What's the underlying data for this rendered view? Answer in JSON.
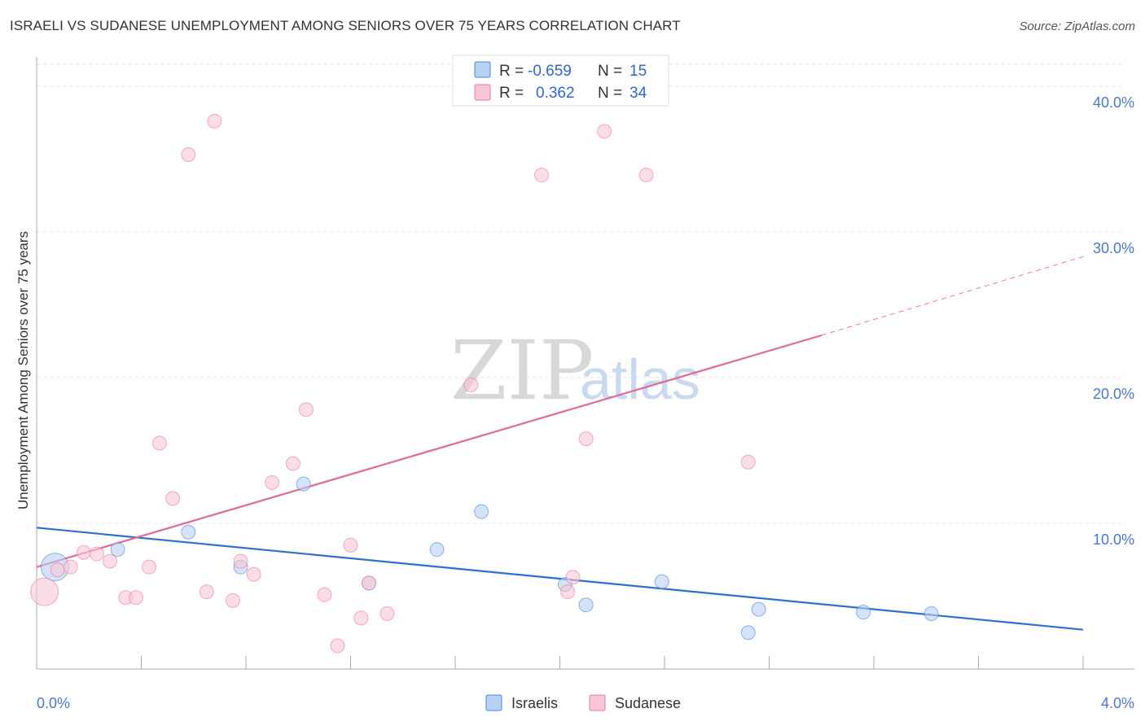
{
  "title": "ISRAELI VS SUDANESE UNEMPLOYMENT AMONG SENIORS OVER 75 YEARS CORRELATION CHART",
  "source": "Source: ZipAtlas.com",
  "watermark": {
    "zip": "ZIP",
    "atlas": "atlas"
  },
  "legend": {
    "r_label": "R =",
    "n_label": "N =",
    "rows": [
      {
        "series": "Israelis",
        "r": "-0.659",
        "n": "15"
      },
      {
        "series": "Sudanese",
        "r": "0.362",
        "n": "34"
      }
    ]
  },
  "chart_data": {
    "type": "scatter",
    "title": "ISRAELI VS SUDANESE UNEMPLOYMENT AMONG SENIORS OVER 75 YEARS CORRELATION CHART",
    "xlabel": "",
    "ylabel": "Unemployment Among Seniors over 75 years",
    "xlim": [
      0,
      4.0
    ],
    "ylim": [
      0,
      41.5
    ],
    "x_tick_labels": [
      "0.0%",
      "4.0%"
    ],
    "y_ticks": [
      10,
      20,
      30,
      40
    ],
    "y_tick_labels": [
      "10.0%",
      "20.0%",
      "30.0%",
      "40.0%"
    ],
    "colors": {
      "Israelis": "#4a86d8",
      "Sudanese": "#e8799e",
      "israelis_fill": "#b8d0f2",
      "sudanese_fill": "#f8c6d6"
    },
    "series": [
      {
        "name": "Israelis",
        "points": [
          {
            "x": 0.07,
            "y": 7.0,
            "big": true
          },
          {
            "x": 0.31,
            "y": 8.2
          },
          {
            "x": 0.58,
            "y": 9.4
          },
          {
            "x": 0.78,
            "y": 7.0
          },
          {
            "x": 1.02,
            "y": 12.7
          },
          {
            "x": 1.27,
            "y": 5.9
          },
          {
            "x": 1.53,
            "y": 8.2
          },
          {
            "x": 1.7,
            "y": 10.8
          },
          {
            "x": 2.02,
            "y": 5.8
          },
          {
            "x": 2.1,
            "y": 4.4
          },
          {
            "x": 2.39,
            "y": 6.0
          },
          {
            "x": 2.72,
            "y": 2.5
          },
          {
            "x": 2.76,
            "y": 4.1
          },
          {
            "x": 3.16,
            "y": 3.9
          },
          {
            "x": 3.42,
            "y": 3.8
          }
        ],
        "trend": {
          "x0": 0.0,
          "y0": 9.7,
          "x1": 4.0,
          "y1": 2.7
        }
      },
      {
        "name": "Sudanese",
        "points": [
          {
            "x": 0.03,
            "y": 5.3,
            "big": true
          },
          {
            "x": 0.08,
            "y": 6.8
          },
          {
            "x": 0.13,
            "y": 7.0
          },
          {
            "x": 0.18,
            "y": 8.0
          },
          {
            "x": 0.23,
            "y": 7.9
          },
          {
            "x": 0.28,
            "y": 7.4
          },
          {
            "x": 0.34,
            "y": 4.9
          },
          {
            "x": 0.38,
            "y": 4.9
          },
          {
            "x": 0.43,
            "y": 7.0
          },
          {
            "x": 0.47,
            "y": 15.5
          },
          {
            "x": 0.52,
            "y": 11.7
          },
          {
            "x": 0.58,
            "y": 35.3
          },
          {
            "x": 0.65,
            "y": 5.3
          },
          {
            "x": 0.68,
            "y": 37.6
          },
          {
            "x": 0.75,
            "y": 4.7
          },
          {
            "x": 0.78,
            "y": 7.4
          },
          {
            "x": 0.83,
            "y": 6.5
          },
          {
            "x": 0.9,
            "y": 12.8
          },
          {
            "x": 0.98,
            "y": 14.1
          },
          {
            "x": 1.03,
            "y": 17.8
          },
          {
            "x": 1.1,
            "y": 5.1
          },
          {
            "x": 1.15,
            "y": 1.6
          },
          {
            "x": 1.2,
            "y": 8.5
          },
          {
            "x": 1.24,
            "y": 3.5
          },
          {
            "x": 1.27,
            "y": 5.9
          },
          {
            "x": 1.34,
            "y": 3.8
          },
          {
            "x": 1.66,
            "y": 19.5
          },
          {
            "x": 1.93,
            "y": 33.9
          },
          {
            "x": 2.03,
            "y": 5.3
          },
          {
            "x": 2.05,
            "y": 6.3
          },
          {
            "x": 2.1,
            "y": 15.8
          },
          {
            "x": 2.17,
            "y": 36.9
          },
          {
            "x": 2.33,
            "y": 33.9
          },
          {
            "x": 2.72,
            "y": 14.2
          }
        ],
        "trend": {
          "x0": 0.0,
          "y0": 7.0,
          "x1": 3.0,
          "y1": 22.9,
          "dash_x1": 4.0,
          "dash_y1": 28.3
        }
      }
    ]
  }
}
